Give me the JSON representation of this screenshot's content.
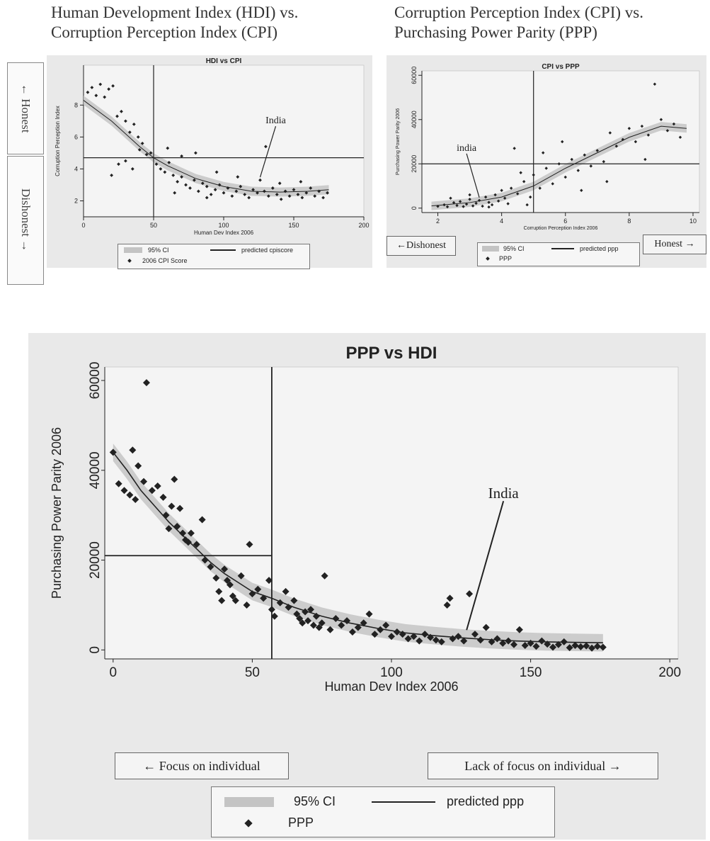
{
  "headings": {
    "hdi_cpi": [
      "Human Development Index (HDI) vs.",
      "Corruption Perception Index (CPI)"
    ],
    "cpi_ppp": [
      "Corruption Perception Index (CPI) vs.",
      "Purchasing Power Parity (PPP)"
    ]
  },
  "side_labels": {
    "top": "← Honest",
    "bottom": "Dishonest →"
  },
  "direction_labels": {
    "cpi_left": "←Dishonest",
    "cpi_right": "Honest →",
    "hdi_left": "← Focus on individual",
    "hdi_right": "Lack of focus on individual →"
  },
  "colors": {
    "panel_bg": "#e9e9e9",
    "plot_bg": "#f4f4f4",
    "ci": "#c4c4c4",
    "ink": "#222222"
  },
  "chart_data": [
    {
      "id": "hdi_cpi",
      "type": "scatter",
      "title": "HDI vs CPI",
      "xlabel": "Human Dev Index 2006",
      "ylabel": "Corruption Perception Index",
      "xlim": [
        0,
        200
      ],
      "ylim": [
        1,
        10.5
      ],
      "xticks": [
        0,
        50,
        100,
        150,
        200
      ],
      "yticks": [
        2,
        4,
        6,
        8
      ],
      "vline": 50,
      "hline": 4.7,
      "annotation": {
        "text": "India",
        "x": 126,
        "y": 3.3
      },
      "legend": [
        "95% CI",
        "predicted cpiscore",
        "2006 CPI Score"
      ],
      "fit": [
        [
          0,
          8.3
        ],
        [
          20,
          7.0
        ],
        [
          40,
          5.4
        ],
        [
          50,
          4.7
        ],
        [
          60,
          4.2
        ],
        [
          80,
          3.4
        ],
        [
          100,
          2.9
        ],
        [
          120,
          2.6
        ],
        [
          140,
          2.55
        ],
        [
          160,
          2.6
        ],
        [
          175,
          2.7
        ]
      ],
      "points": [
        [
          3,
          8.8
        ],
        [
          6,
          9.1
        ],
        [
          9,
          8.6
        ],
        [
          12,
          9.3
        ],
        [
          15,
          8.5
        ],
        [
          18,
          9.0
        ],
        [
          21,
          9.2
        ],
        [
          24,
          7.3
        ],
        [
          27,
          7.6
        ],
        [
          30,
          7.0
        ],
        [
          33,
          6.3
        ],
        [
          36,
          6.8
        ],
        [
          39,
          6.0
        ],
        [
          42,
          5.6
        ],
        [
          45,
          4.9
        ],
        [
          48,
          5.0
        ],
        [
          52,
          4.3
        ],
        [
          55,
          4.0
        ],
        [
          58,
          3.8
        ],
        [
          61,
          4.4
        ],
        [
          64,
          3.6
        ],
        [
          67,
          3.2
        ],
        [
          70,
          3.5
        ],
        [
          73,
          3.0
        ],
        [
          76,
          2.8
        ],
        [
          79,
          3.3
        ],
        [
          82,
          2.6
        ],
        [
          85,
          3.1
        ],
        [
          88,
          2.9
        ],
        [
          91,
          2.4
        ],
        [
          94,
          2.7
        ],
        [
          97,
          3.0
        ],
        [
          100,
          2.5
        ],
        [
          103,
          2.8
        ],
        [
          106,
          2.3
        ],
        [
          109,
          2.6
        ],
        [
          112,
          2.9
        ],
        [
          115,
          2.4
        ],
        [
          118,
          2.2
        ],
        [
          121,
          2.7
        ],
        [
          124,
          2.5
        ],
        [
          126,
          3.3
        ],
        [
          129,
          2.6
        ],
        [
          132,
          2.3
        ],
        [
          135,
          2.8
        ],
        [
          138,
          2.4
        ],
        [
          141,
          2.1
        ],
        [
          144,
          2.6
        ],
        [
          147,
          2.3
        ],
        [
          150,
          2.7
        ],
        [
          153,
          2.4
        ],
        [
          156,
          2.2
        ],
        [
          159,
          2.5
        ],
        [
          162,
          2.8
        ],
        [
          165,
          2.3
        ],
        [
          168,
          2.6
        ],
        [
          171,
          2.2
        ],
        [
          174,
          2.5
        ],
        [
          30,
          4.5
        ],
        [
          35,
          4.0
        ],
        [
          40,
          5.2
        ],
        [
          60,
          5.3
        ],
        [
          70,
          4.8
        ],
        [
          80,
          5.0
        ],
        [
          130,
          5.4
        ],
        [
          95,
          3.8
        ],
        [
          110,
          3.5
        ],
        [
          140,
          3.1
        ],
        [
          155,
          3.2
        ],
        [
          20,
          3.6
        ],
        [
          25,
          4.3
        ],
        [
          65,
          2.5
        ],
        [
          88,
          2.2
        ]
      ]
    },
    {
      "id": "cpi_ppp",
      "type": "scatter",
      "title": "CPI vs PPP",
      "xlabel": "Corruption Perception Index 2006",
      "ylabel": "Purchasing Power Parity 2006",
      "xlim": [
        1.5,
        10.2
      ],
      "ylim": [
        -2000,
        62000
      ],
      "xticks": [
        2,
        4,
        6,
        8,
        10
      ],
      "yticks": [
        0,
        20000,
        40000,
        60000
      ],
      "vline": 5,
      "hline": 20000,
      "annotation": {
        "text": "india",
        "x": 3.3,
        "y": 3500
      },
      "legend": [
        "95% CI",
        "predicted ppp",
        "PPP"
      ],
      "fit": [
        [
          1.8,
          1000
        ],
        [
          3,
          2500
        ],
        [
          4,
          5000
        ],
        [
          5,
          10000
        ],
        [
          6,
          18000
        ],
        [
          7,
          25000
        ],
        [
          8,
          32000
        ],
        [
          9,
          37000
        ],
        [
          9.8,
          36000
        ]
      ],
      "points": [
        [
          2.0,
          800
        ],
        [
          2.2,
          1500
        ],
        [
          2.3,
          600
        ],
        [
          2.5,
          2500
        ],
        [
          2.6,
          1200
        ],
        [
          2.7,
          3000
        ],
        [
          2.8,
          700
        ],
        [
          2.9,
          1800
        ],
        [
          3.0,
          4000
        ],
        [
          3.1,
          1000
        ],
        [
          3.2,
          2200
        ],
        [
          3.3,
          3500
        ],
        [
          3.4,
          900
        ],
        [
          3.5,
          5000
        ],
        [
          3.6,
          2600
        ],
        [
          3.7,
          1500
        ],
        [
          3.8,
          6000
        ],
        [
          3.9,
          3200
        ],
        [
          4.0,
          8000
        ],
        [
          4.1,
          4500
        ],
        [
          4.2,
          2000
        ],
        [
          4.3,
          9000
        ],
        [
          4.5,
          6500
        ],
        [
          4.7,
          12000
        ],
        [
          4.9,
          5000
        ],
        [
          5.0,
          15000
        ],
        [
          5.2,
          9000
        ],
        [
          5.4,
          18000
        ],
        [
          5.6,
          11000
        ],
        [
          5.8,
          20000
        ],
        [
          6.0,
          14000
        ],
        [
          6.2,
          22000
        ],
        [
          6.4,
          17000
        ],
        [
          6.6,
          24000
        ],
        [
          6.8,
          19000
        ],
        [
          7.0,
          26000
        ],
        [
          7.2,
          21000
        ],
        [
          7.4,
          34000
        ],
        [
          7.6,
          28000
        ],
        [
          7.8,
          31000
        ],
        [
          8.0,
          36000
        ],
        [
          8.2,
          30000
        ],
        [
          8.4,
          37000
        ],
        [
          8.6,
          33000
        ],
        [
          8.8,
          56000
        ],
        [
          9.0,
          40000
        ],
        [
          9.2,
          35000
        ],
        [
          9.4,
          38000
        ],
        [
          9.6,
          32000
        ],
        [
          4.4,
          27000
        ],
        [
          4.6,
          16000
        ],
        [
          5.3,
          25000
        ],
        [
          6.5,
          8000
        ],
        [
          7.3,
          12000
        ],
        [
          2.4,
          4500
        ],
        [
          3.0,
          6000
        ],
        [
          3.6,
          500
        ],
        [
          4.8,
          1500
        ],
        [
          5.9,
          30000
        ],
        [
          8.5,
          22000
        ]
      ]
    },
    {
      "id": "ppp_hdi",
      "type": "scatter",
      "title": "PPP vs HDI",
      "xlabel": "Human Dev Index 2006",
      "ylabel": "Purchasing Power Parity 2006",
      "xlim": [
        -3,
        203
      ],
      "ylim": [
        -2000,
        63000
      ],
      "xticks": [
        0,
        50,
        100,
        150,
        200
      ],
      "yticks": [
        0,
        20000,
        40000,
        60000
      ],
      "vline": 57,
      "hline": 21000,
      "annotation": {
        "text": "India",
        "x": 127,
        "y": 3800
      },
      "legend": [
        "95% CI",
        "predicted ppp",
        "PPP"
      ],
      "fit": [
        [
          0,
          44000
        ],
        [
          5,
          40000
        ],
        [
          10,
          35500
        ],
        [
          15,
          32000
        ],
        [
          20,
          28500
        ],
        [
          25,
          25500
        ],
        [
          30,
          22500
        ],
        [
          35,
          19500
        ],
        [
          40,
          17000
        ],
        [
          45,
          15000
        ],
        [
          50,
          13000
        ],
        [
          57,
          11500
        ],
        [
          65,
          9500
        ],
        [
          75,
          7500
        ],
        [
          85,
          6000
        ],
        [
          95,
          4800
        ],
        [
          105,
          3800
        ],
        [
          115,
          3200
        ],
        [
          125,
          2700
        ],
        [
          135,
          2300
        ],
        [
          145,
          2000
        ],
        [
          155,
          1800
        ],
        [
          165,
          1700
        ],
        [
          176,
          1600
        ]
      ],
      "points": [
        [
          0,
          44000
        ],
        [
          2,
          37000
        ],
        [
          4,
          35500
        ],
        [
          6,
          34500
        ],
        [
          8,
          33500
        ],
        [
          7,
          44500
        ],
        [
          9,
          41000
        ],
        [
          11,
          37500
        ],
        [
          12,
          59500
        ],
        [
          14,
          35500
        ],
        [
          16,
          36500
        ],
        [
          18,
          34000
        ],
        [
          19,
          30000
        ],
        [
          20,
          27000
        ],
        [
          21,
          32000
        ],
        [
          22,
          38000
        ],
        [
          23,
          27500
        ],
        [
          24,
          31500
        ],
        [
          25,
          26000
        ],
        [
          26,
          24500
        ],
        [
          27,
          24000
        ],
        [
          28,
          26000
        ],
        [
          30,
          23500
        ],
        [
          32,
          29000
        ],
        [
          33,
          20000
        ],
        [
          35,
          18500
        ],
        [
          37,
          16000
        ],
        [
          38,
          13000
        ],
        [
          39,
          11000
        ],
        [
          40,
          18000
        ],
        [
          41,
          15500
        ],
        [
          42,
          14500
        ],
        [
          43,
          12000
        ],
        [
          44,
          11000
        ],
        [
          46,
          16500
        ],
        [
          48,
          10000
        ],
        [
          49,
          23500
        ],
        [
          50,
          12500
        ],
        [
          52,
          13500
        ],
        [
          54,
          11500
        ],
        [
          56,
          15500
        ],
        [
          57,
          9000
        ],
        [
          58,
          7500
        ],
        [
          60,
          10500
        ],
        [
          62,
          13000
        ],
        [
          63,
          9500
        ],
        [
          65,
          11000
        ],
        [
          66,
          8000
        ],
        [
          67,
          7000
        ],
        [
          68,
          6000
        ],
        [
          69,
          8500
        ],
        [
          70,
          6500
        ],
        [
          71,
          9000
        ],
        [
          72,
          5500
        ],
        [
          73,
          7500
        ],
        [
          74,
          5000
        ],
        [
          75,
          6000
        ],
        [
          76,
          16500
        ],
        [
          78,
          4500
        ],
        [
          80,
          7000
        ],
        [
          82,
          5500
        ],
        [
          84,
          6500
        ],
        [
          86,
          4000
        ],
        [
          88,
          5000
        ],
        [
          90,
          6000
        ],
        [
          92,
          8000
        ],
        [
          94,
          3500
        ],
        [
          96,
          4500
        ],
        [
          98,
          5500
        ],
        [
          100,
          3000
        ],
        [
          102,
          4000
        ],
        [
          104,
          3500
        ],
        [
          106,
          2500
        ],
        [
          108,
          3000
        ],
        [
          110,
          2000
        ],
        [
          112,
          3500
        ],
        [
          114,
          2800
        ],
        [
          116,
          2200
        ],
        [
          118,
          1800
        ],
        [
          120,
          10000
        ],
        [
          121,
          11500
        ],
        [
          122,
          2500
        ],
        [
          124,
          3000
        ],
        [
          126,
          2000
        ],
        [
          128,
          12500
        ],
        [
          130,
          3500
        ],
        [
          132,
          2200
        ],
        [
          134,
          5000
        ],
        [
          136,
          1800
        ],
        [
          138,
          2500
        ],
        [
          140,
          1500
        ],
        [
          142,
          2000
        ],
        [
          144,
          1200
        ],
        [
          146,
          4500
        ],
        [
          148,
          1000
        ],
        [
          150,
          1500
        ],
        [
          152,
          800
        ],
        [
          154,
          2000
        ],
        [
          156,
          1300
        ],
        [
          158,
          600
        ],
        [
          160,
          1200
        ],
        [
          162,
          1800
        ],
        [
          164,
          500
        ],
        [
          166,
          1000
        ],
        [
          168,
          700
        ],
        [
          170,
          900
        ],
        [
          172,
          400
        ],
        [
          174,
          800
        ],
        [
          176,
          600
        ]
      ]
    }
  ]
}
